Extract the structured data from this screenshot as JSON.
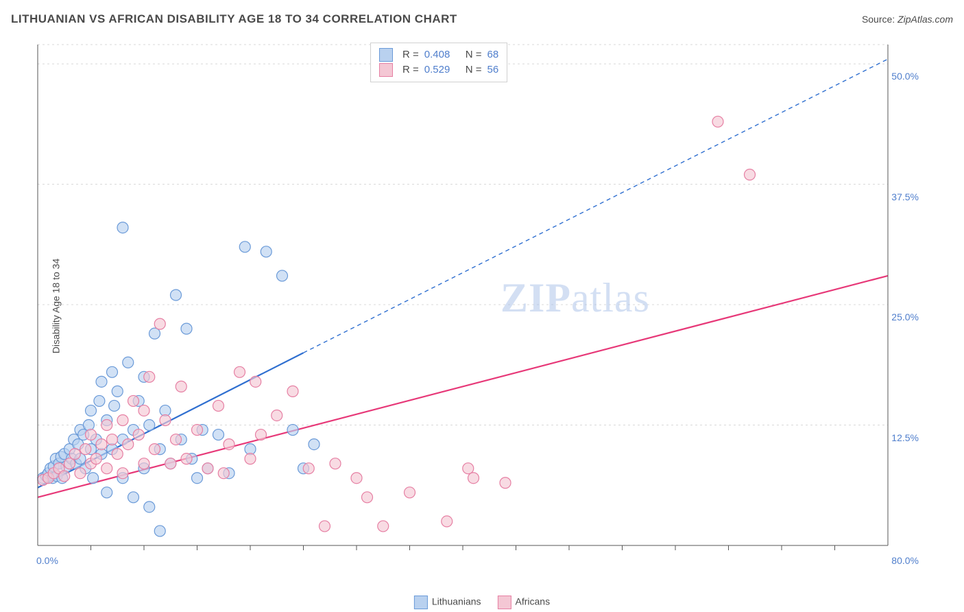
{
  "header": {
    "title": "LITHUANIAN VS AFRICAN DISABILITY AGE 18 TO 34 CORRELATION CHART",
    "source_prefix": "Source: ",
    "source_site": "ZipAtlas.com"
  },
  "axes": {
    "y_label": "Disability Age 18 to 34",
    "x_min": 0,
    "x_max": 80,
    "y_min": 0,
    "y_max": 52,
    "x_origin_label": "0.0%",
    "x_max_label": "80.0%",
    "y_ticks": [
      {
        "v": 12.5,
        "label": "12.5%"
      },
      {
        "v": 25.0,
        "label": "25.0%"
      },
      {
        "v": 37.5,
        "label": "37.5%"
      },
      {
        "v": 50.0,
        "label": "50.0%"
      }
    ],
    "x_ticks_minor": [
      5,
      10,
      15,
      20,
      25,
      30,
      35,
      40,
      45,
      50,
      55,
      60,
      65,
      70,
      75
    ],
    "grid_color": "#d8d8d8",
    "axis_color": "#555555"
  },
  "chart": {
    "type": "scatter",
    "background_color": "#ffffff",
    "marker_radius": 8,
    "marker_stroke_width": 1.2,
    "series": [
      {
        "name": "Lithuanians",
        "fill": "#b9d1ef",
        "stroke": "#6a9ad8",
        "fill_opacity": 0.65,
        "R": "0.408",
        "N": "68",
        "trend": {
          "x1": 0,
          "y1": 6.0,
          "x2": 25,
          "y2": 20.0,
          "x2_ext": 80,
          "y2_ext": 50.5,
          "color": "#2f6fd0",
          "width": 2.2
        },
        "points": [
          [
            0.5,
            7.0
          ],
          [
            0.8,
            7.2
          ],
          [
            1.0,
            7.5
          ],
          [
            1.2,
            8.0
          ],
          [
            1.4,
            7.0
          ],
          [
            1.5,
            8.2
          ],
          [
            1.7,
            9.0
          ],
          [
            1.8,
            7.2
          ],
          [
            2.0,
            8.5
          ],
          [
            2.2,
            9.2
          ],
          [
            2.3,
            7.0
          ],
          [
            2.5,
            9.5
          ],
          [
            2.7,
            8.2
          ],
          [
            3.0,
            10.0
          ],
          [
            3.2,
            9.0
          ],
          [
            3.4,
            11.0
          ],
          [
            3.6,
            8.5
          ],
          [
            3.8,
            10.5
          ],
          [
            4.0,
            12.0
          ],
          [
            4.0,
            9.0
          ],
          [
            4.3,
            11.5
          ],
          [
            4.5,
            8.0
          ],
          [
            4.8,
            12.5
          ],
          [
            5.0,
            10.0
          ],
          [
            5.0,
            14.0
          ],
          [
            5.2,
            7.0
          ],
          [
            5.5,
            11.0
          ],
          [
            5.8,
            15.0
          ],
          [
            6.0,
            9.5
          ],
          [
            6.0,
            17.0
          ],
          [
            6.5,
            13.0
          ],
          [
            6.5,
            5.5
          ],
          [
            7.0,
            18.0
          ],
          [
            7.0,
            10.0
          ],
          [
            7.2,
            14.5
          ],
          [
            7.5,
            16.0
          ],
          [
            8.0,
            33.0
          ],
          [
            8.0,
            11.0
          ],
          [
            8.0,
            7.0
          ],
          [
            8.5,
            19.0
          ],
          [
            9.0,
            12.0
          ],
          [
            9.0,
            5.0
          ],
          [
            9.5,
            15.0
          ],
          [
            10.0,
            17.5
          ],
          [
            10.0,
            8.0
          ],
          [
            10.5,
            12.5
          ],
          [
            10.5,
            4.0
          ],
          [
            11.0,
            22.0
          ],
          [
            11.5,
            10.0
          ],
          [
            11.5,
            1.5
          ],
          [
            12.0,
            14.0
          ],
          [
            12.5,
            8.5
          ],
          [
            13.0,
            26.0
          ],
          [
            13.5,
            11.0
          ],
          [
            14.0,
            22.5
          ],
          [
            14.5,
            9.0
          ],
          [
            15.0,
            7.0
          ],
          [
            15.5,
            12.0
          ],
          [
            16.0,
            8.0
          ],
          [
            17.0,
            11.5
          ],
          [
            18.0,
            7.5
          ],
          [
            19.5,
            31.0
          ],
          [
            20.0,
            10.0
          ],
          [
            21.5,
            30.5
          ],
          [
            23.0,
            28.0
          ],
          [
            24.0,
            12.0
          ],
          [
            25.0,
            8.0
          ],
          [
            26.0,
            10.5
          ]
        ]
      },
      {
        "name": "Africans",
        "fill": "#f4c7d4",
        "stroke": "#e67fa3",
        "fill_opacity": 0.65,
        "R": "0.529",
        "N": "56",
        "trend": {
          "x1": 0,
          "y1": 5.0,
          "x2": 80,
          "y2": 28.0,
          "color": "#e73878",
          "width": 2.2
        },
        "points": [
          [
            0.5,
            6.8
          ],
          [
            1.0,
            7.0
          ],
          [
            1.5,
            7.5
          ],
          [
            2.0,
            8.0
          ],
          [
            2.5,
            7.2
          ],
          [
            3.0,
            8.5
          ],
          [
            3.5,
            9.5
          ],
          [
            4.0,
            7.5
          ],
          [
            4.5,
            10.0
          ],
          [
            5.0,
            8.5
          ],
          [
            5.0,
            11.5
          ],
          [
            5.5,
            9.0
          ],
          [
            6.0,
            10.5
          ],
          [
            6.5,
            8.0
          ],
          [
            6.5,
            12.5
          ],
          [
            7.0,
            11.0
          ],
          [
            7.5,
            9.5
          ],
          [
            8.0,
            13.0
          ],
          [
            8.0,
            7.5
          ],
          [
            8.5,
            10.5
          ],
          [
            9.0,
            15.0
          ],
          [
            9.5,
            11.5
          ],
          [
            10.0,
            8.5
          ],
          [
            10.0,
            14.0
          ],
          [
            10.5,
            17.5
          ],
          [
            11.0,
            10.0
          ],
          [
            11.5,
            23.0
          ],
          [
            12.0,
            13.0
          ],
          [
            12.5,
            8.5
          ],
          [
            13.0,
            11.0
          ],
          [
            13.5,
            16.5
          ],
          [
            14.0,
            9.0
          ],
          [
            15.0,
            12.0
          ],
          [
            16.0,
            8.0
          ],
          [
            17.0,
            14.5
          ],
          [
            17.5,
            7.5
          ],
          [
            18.0,
            10.5
          ],
          [
            19.0,
            18.0
          ],
          [
            20.0,
            9.0
          ],
          [
            20.5,
            17.0
          ],
          [
            21.0,
            11.5
          ],
          [
            22.5,
            13.5
          ],
          [
            24.0,
            16.0
          ],
          [
            25.5,
            8.0
          ],
          [
            27.0,
            2.0
          ],
          [
            28.0,
            8.5
          ],
          [
            30.0,
            7.0
          ],
          [
            31.0,
            5.0
          ],
          [
            32.5,
            2.0
          ],
          [
            35.0,
            5.5
          ],
          [
            38.5,
            2.5
          ],
          [
            40.5,
            8.0
          ],
          [
            41.0,
            7.0
          ],
          [
            44.0,
            6.5
          ],
          [
            64.0,
            44.0
          ],
          [
            67.0,
            38.5
          ]
        ]
      }
    ]
  },
  "legend_top": {
    "r_label": "R =",
    "n_label": "N ="
  },
  "legend_bottom": {
    "items": [
      "Lithuanians",
      "Africans"
    ]
  },
  "watermark": {
    "zip": "ZIP",
    "atlas": "atlas"
  }
}
